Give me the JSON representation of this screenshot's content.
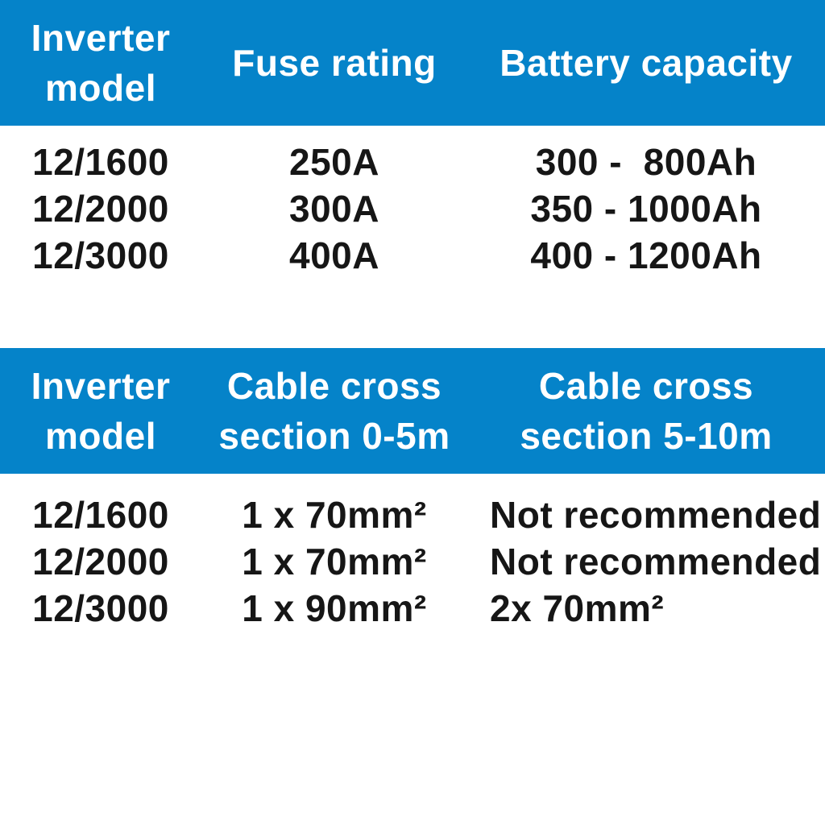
{
  "colors": {
    "header_bg": "#0583c9",
    "header_text": "#ffffff",
    "body_text": "#161616",
    "page_bg": "#ffffff"
  },
  "tables": [
    {
      "name": "fuse-and-battery-capacity",
      "columns": [
        "Inverter\nmodel",
        "Fuse rating",
        "Battery capacity"
      ],
      "rows": [
        [
          "12/1600",
          "250A",
          "300 -  800Ah"
        ],
        [
          "12/2000",
          "300A",
          "350 - 1000Ah"
        ],
        [
          "12/3000",
          "400A",
          "400 - 1200Ah"
        ]
      ]
    },
    {
      "name": "cable-cross-section",
      "columns": [
        "Inverter\nmodel",
        "Cable cross\nsection 0-5m",
        "Cable cross\nsection 5-10m"
      ],
      "rows": [
        [
          "12/1600",
          "1 x 70mm²",
          "Not recommended"
        ],
        [
          "12/2000",
          "1 x 70mm²",
          "Not recommended"
        ],
        [
          "12/3000",
          "1 x 90mm²",
          "2x 70mm²"
        ]
      ]
    }
  ]
}
